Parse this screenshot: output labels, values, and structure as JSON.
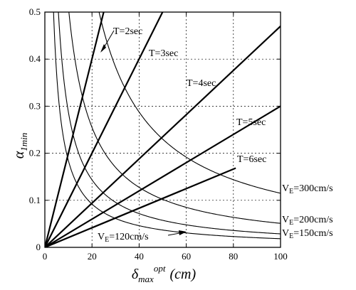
{
  "chart_data": {
    "type": "line",
    "xlabel": {
      "main": "δ",
      "sub": "max",
      "sup": "opt",
      "unit": "(cm)"
    },
    "ylabel": {
      "main": "α",
      "sub": "1min"
    },
    "xlim": [
      0,
      100
    ],
    "ylim": [
      0,
      0.5
    ],
    "x_ticks": [
      0,
      20,
      40,
      60,
      80,
      100
    ],
    "x_tick_labels": [
      "0",
      "20",
      "40",
      "60",
      "80",
      "100"
    ],
    "y_ticks": [
      0,
      0.1,
      0.2,
      0.3,
      0.4,
      0.5
    ],
    "y_tick_labels": [
      "0",
      "0.1",
      "0.2",
      "0.3",
      "0.4",
      "0.5"
    ],
    "grid": "dashed",
    "t_lines": [
      {
        "label": "T=2sec",
        "slope": 0.02003
      },
      {
        "label": "T=3sec",
        "slope": 0.01001
      },
      {
        "label": "T=4sec",
        "slope": 0.0047
      },
      {
        "label": "T=5sec",
        "slope": 0.003
      },
      {
        "label": "T=6sec",
        "slope": 0.00208
      }
    ],
    "ve_curves": [
      {
        "label": "V",
        "sub": "E",
        "value": "=300cm/s",
        "k": 11.5
      },
      {
        "label": "V",
        "sub": "E",
        "value": "=200cm/s",
        "k": 5.1
      },
      {
        "label": "V",
        "sub": "E",
        "value": "=150cm/s",
        "k": 2.87
      },
      {
        "label": "V",
        "sub": "E",
        "value": "=120cm/s",
        "k": 1.84
      }
    ]
  }
}
